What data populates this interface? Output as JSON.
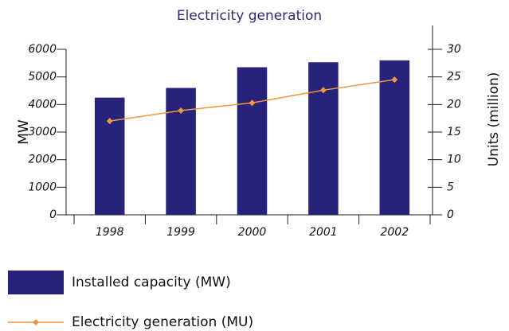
{
  "chart_data": {
    "type": "bar",
    "title": "Electricity generation",
    "categories": [
      "1998",
      "1999",
      "2000",
      "2001",
      "2002"
    ],
    "series": [
      {
        "name": "Installed capacity (MW)",
        "type": "bar",
        "color": "#27237a",
        "values": [
          4250,
          4600,
          5350,
          5530,
          5600
        ]
      },
      {
        "name": "Electricity generation (MU)",
        "type": "line",
        "axis": "y2",
        "color": "#f0963c",
        "values": [
          17.0,
          18.9,
          20.3,
          22.6,
          24.5
        ]
      }
    ],
    "ylabel": "MW",
    "y2label": "Units (million)",
    "ylim": [
      0,
      6000
    ],
    "yticks": [
      0,
      1000,
      2000,
      3000,
      4000,
      5000,
      6000
    ],
    "y2lim": [
      0,
      30
    ],
    "y2ticks": [
      0,
      5,
      10,
      15,
      20,
      25,
      30
    ],
    "legend": "bottom"
  }
}
